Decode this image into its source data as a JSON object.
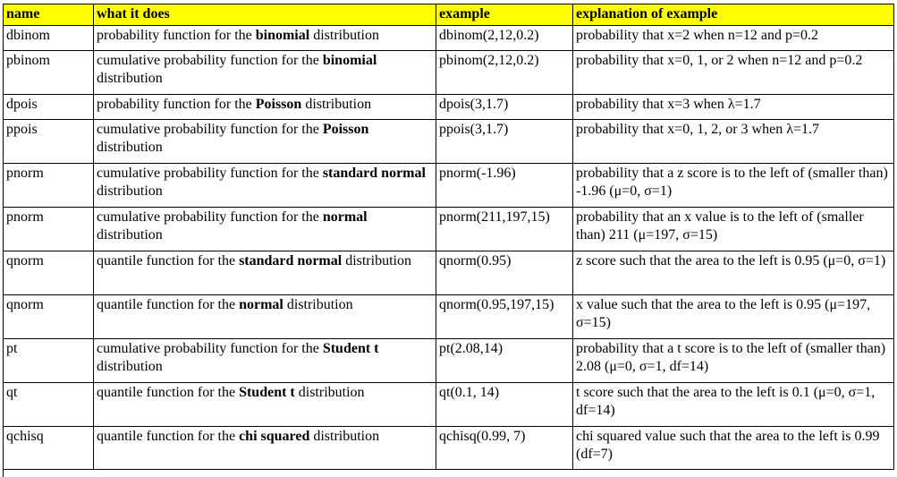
{
  "table": {
    "headers": [
      "name",
      "what it does",
      "example",
      "explanation of example"
    ],
    "rows": [
      {
        "name": "dbinom",
        "desc_pre": "probability function for the ",
        "desc_bold": "binomial",
        "desc_post": " distribution",
        "example": "dbinom(2,12,0.2)",
        "explanation": "probability that x=2 when n=12 and p=0.2"
      },
      {
        "name": "pbinom",
        "desc_pre": "cumulative probability function for the ",
        "desc_bold": "binomial",
        "desc_post": " distribution",
        "example": "pbinom(2,12,0.2)",
        "explanation": "probability that x=0, 1, or 2 when n=12 and p=0.2"
      },
      {
        "name": "dpois",
        "desc_pre": "probability function for the ",
        "desc_bold": "Poisson",
        "desc_post": " distribution",
        "example": "dpois(3,1.7)",
        "explanation": "probability that x=3 when λ=1.7"
      },
      {
        "name": "ppois",
        "desc_pre": "cumulative probability function for the ",
        "desc_bold": "Poisson",
        "desc_post": " distribution",
        "example": "ppois(3,1.7)",
        "explanation": "probability that x=0, 1, 2, or 3 when λ=1.7"
      },
      {
        "name": "pnorm",
        "desc_pre": "cumulative probability function for the ",
        "desc_bold": "standard normal",
        "desc_post": " distribution",
        "example": "pnorm(-1.96)",
        "explanation": "probability that a z score is to the left of (smaller than) -1.96 (μ=0, σ=1)"
      },
      {
        "name": "pnorm",
        "desc_pre": "cumulative probability function for the ",
        "desc_bold": "normal",
        "desc_post": " distribution",
        "example": "pnorm(211,197,15)",
        "explanation": "probability that an x value is to the left of (smaller than) 211 (μ=197, σ=15)"
      },
      {
        "name": "qnorm",
        "desc_pre": "quantile function for the ",
        "desc_bold": "standard normal",
        "desc_post": " distribution",
        "example": "qnorm(0.95)",
        "explanation": "z score such that the area to the left is 0.95 (μ=0, σ=1)"
      },
      {
        "name": "qnorm",
        "desc_pre": "quantile function for the ",
        "desc_bold": "normal",
        "desc_post": " distribution",
        "example": "qnorm(0.95,197,15)",
        "explanation": "x value such that the area to the left is 0.95 (μ=197, σ=15)"
      },
      {
        "name": "pt",
        "desc_pre": "cumulative probability function for the ",
        "desc_bold": "Student t",
        "desc_post": " distribution",
        "example": "pt(2.08,14)",
        "explanation": "probability that a t score is to the left of (smaller than) 2.08 (μ=0, σ=1, df=14)"
      },
      {
        "name": "qt",
        "desc_pre": "quantile function for the ",
        "desc_bold": "Student t",
        "desc_post": " distribution",
        "example": "qt(0.1, 14)",
        "explanation": "t score such that the area to the left is 0.1 (μ=0, σ=1, df=14)"
      },
      {
        "name": "qchisq",
        "desc_pre": "quantile function for the ",
        "desc_bold": "chi squared",
        "desc_post": " distribution",
        "example": "qchisq(0.99, 7)",
        "explanation": "chi squared value such that the area to the left is 0.99 (df=7)"
      }
    ]
  }
}
